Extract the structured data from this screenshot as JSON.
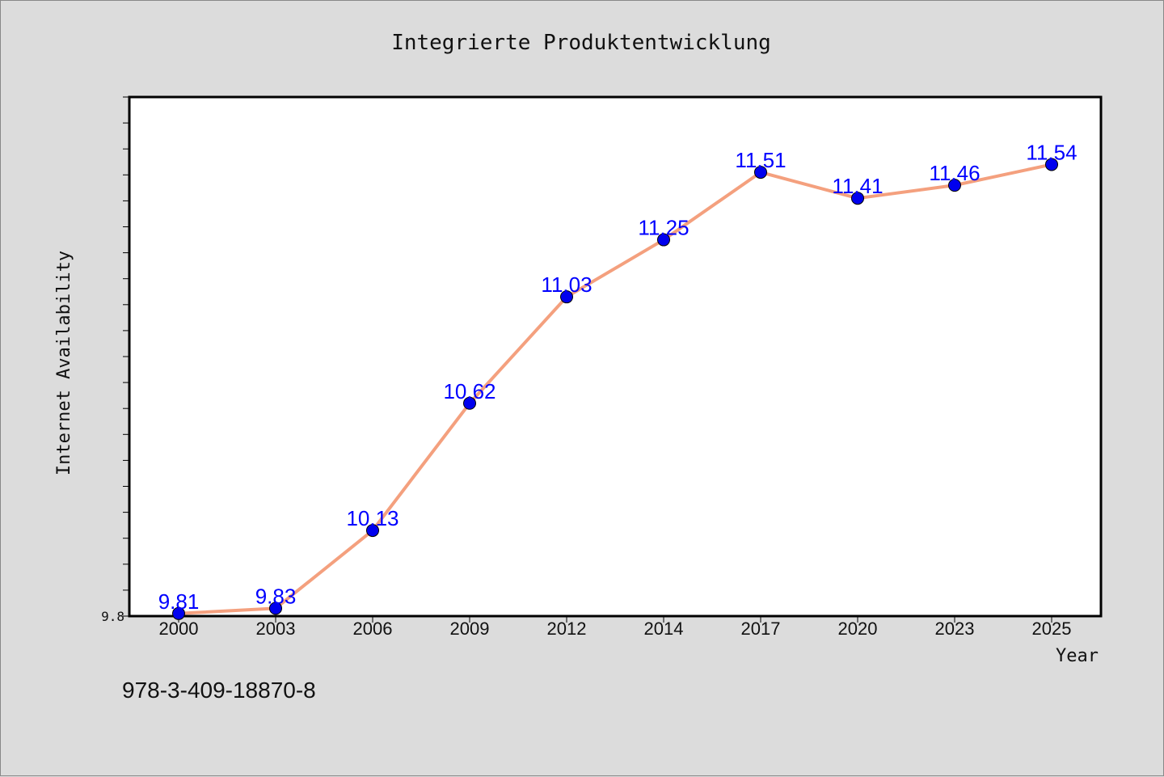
{
  "chart_data": {
    "type": "line",
    "title": "Integrierte Produktentwicklung",
    "xlabel": "Year",
    "ylabel": "Internet Availability",
    "categories": [
      "2000",
      "2003",
      "2006",
      "2009",
      "2012",
      "2014",
      "2017",
      "2020",
      "2023",
      "2025"
    ],
    "series": [
      {
        "values": [
          9.81,
          9.83,
          10.13,
          10.62,
          11.03,
          11.25,
          11.51,
          11.41,
          11.46,
          11.54
        ],
        "labels": [
          "9.81",
          "9.83",
          "10.13",
          "10.62",
          "11.03",
          "11.25",
          "11.51",
          "11.41",
          "11.46",
          "11.54"
        ],
        "line_color": "#f4a07e",
        "marker_color": "#0000ee"
      }
    ],
    "ylim": [
      9.8,
      11.8
    ],
    "yticks_labeled": [
      "9.8"
    ],
    "grid": false,
    "legend": "none"
  },
  "annotation": "978-3-409-18870-8"
}
